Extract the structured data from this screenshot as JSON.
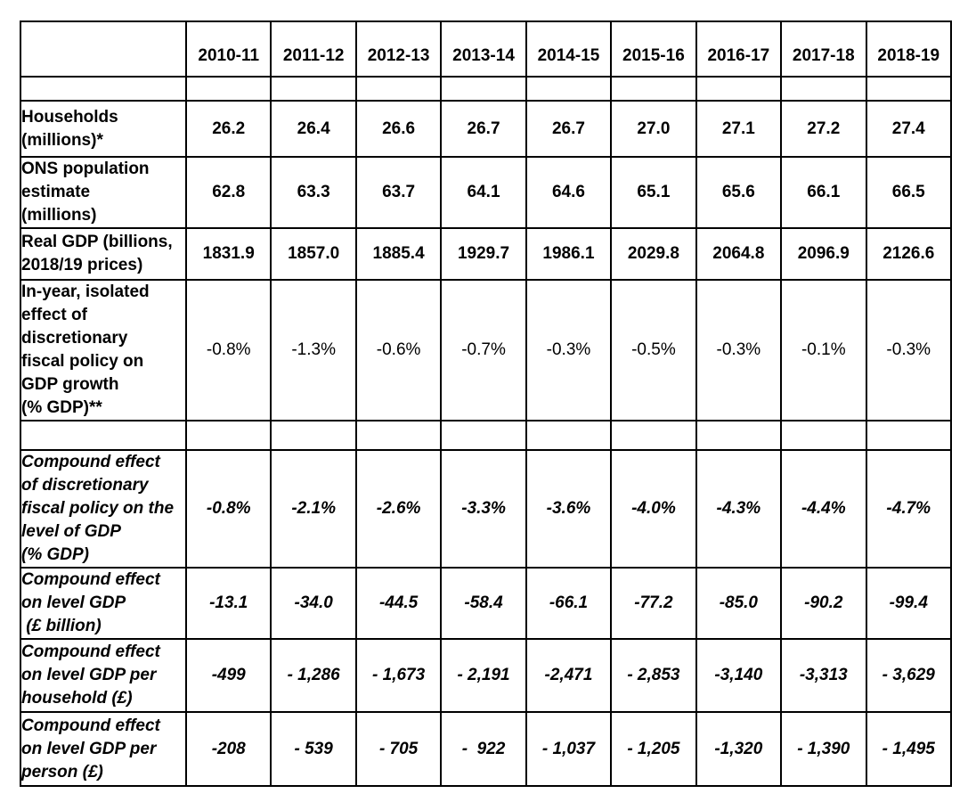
{
  "colors": {
    "background": "#ffffff",
    "border": "#000000",
    "text": "#000000"
  },
  "table": {
    "header": {
      "corner": "",
      "years": [
        "2010-11",
        "2011-12",
        "2012-13",
        "2013-14",
        "2014-15",
        "2015-16",
        "2016-17",
        "2017-18",
        "2018-19"
      ]
    },
    "rows": [
      {
        "type": "spacer",
        "label": "",
        "values": [
          "",
          "",
          "",
          "",
          "",
          "",
          "",
          "",
          ""
        ]
      },
      {
        "type": "bold",
        "label": "Households\n(millions)*",
        "values": [
          "26.2",
          "26.4",
          "26.6",
          "26.7",
          "26.7",
          "27.0",
          "27.1",
          "27.2",
          "27.4"
        ]
      },
      {
        "type": "bold",
        "label": "ONS population\nestimate\n(millions)",
        "values": [
          "62.8",
          "63.3",
          "63.7",
          "64.1",
          "64.6",
          "65.1",
          "65.6",
          "66.1",
          "66.5"
        ]
      },
      {
        "type": "bold",
        "label": "Real GDP (billions,\n2018/19 prices)",
        "values": [
          "1831.9",
          "1857.0",
          "1885.4",
          "1929.7",
          "1986.1",
          "2029.8",
          "2064.8",
          "2096.9",
          "2126.6"
        ]
      },
      {
        "type": "inyear",
        "label": "In-year, isolated\neffect of\ndiscretionary\nfiscal policy on\nGDP growth\n(% GDP)**",
        "values": [
          "-0.8%",
          "-1.3%",
          "-0.6%",
          "-0.7%",
          "-0.3%",
          "-0.5%",
          "-0.3%",
          "-0.1%",
          "-0.3%"
        ]
      },
      {
        "type": "spacer",
        "label": "",
        "values": [
          "",
          "",
          "",
          "",
          "",
          "",
          "",
          "",
          ""
        ]
      },
      {
        "type": "italic",
        "label": "Compound effect\nof discretionary\nfiscal policy on the\nlevel of GDP\n(% GDP)",
        "values": [
          "-0.8%",
          "-2.1%",
          "-2.6%",
          "-3.3%",
          "-3.6%",
          "-4.0%",
          "-4.3%",
          "-4.4%",
          "-4.7%"
        ]
      },
      {
        "type": "italic",
        "label": "Compound effect\non level GDP\n (£ billion)",
        "values": [
          "-13.1",
          "-34.0",
          "-44.5",
          "-58.4",
          "-66.1",
          "-77.2",
          "-85.0",
          "-90.2",
          "-99.4"
        ]
      },
      {
        "type": "italic",
        "label": "Compound effect\non level GDP per\nhousehold (£)",
        "values": [
          "-499",
          "- 1,286",
          "- 1,673",
          "- 2,191",
          "-2,471",
          "- 2,853",
          "-3,140",
          "-3,313",
          "- 3,629"
        ]
      },
      {
        "type": "italic",
        "label": "Compound effect\non level GDP per\nperson (£)",
        "values": [
          "-208",
          "- 539",
          "- 705",
          "-  922",
          "- 1,037",
          "- 1,205",
          "-1,320",
          "- 1,390",
          "- 1,495"
        ]
      }
    ]
  }
}
